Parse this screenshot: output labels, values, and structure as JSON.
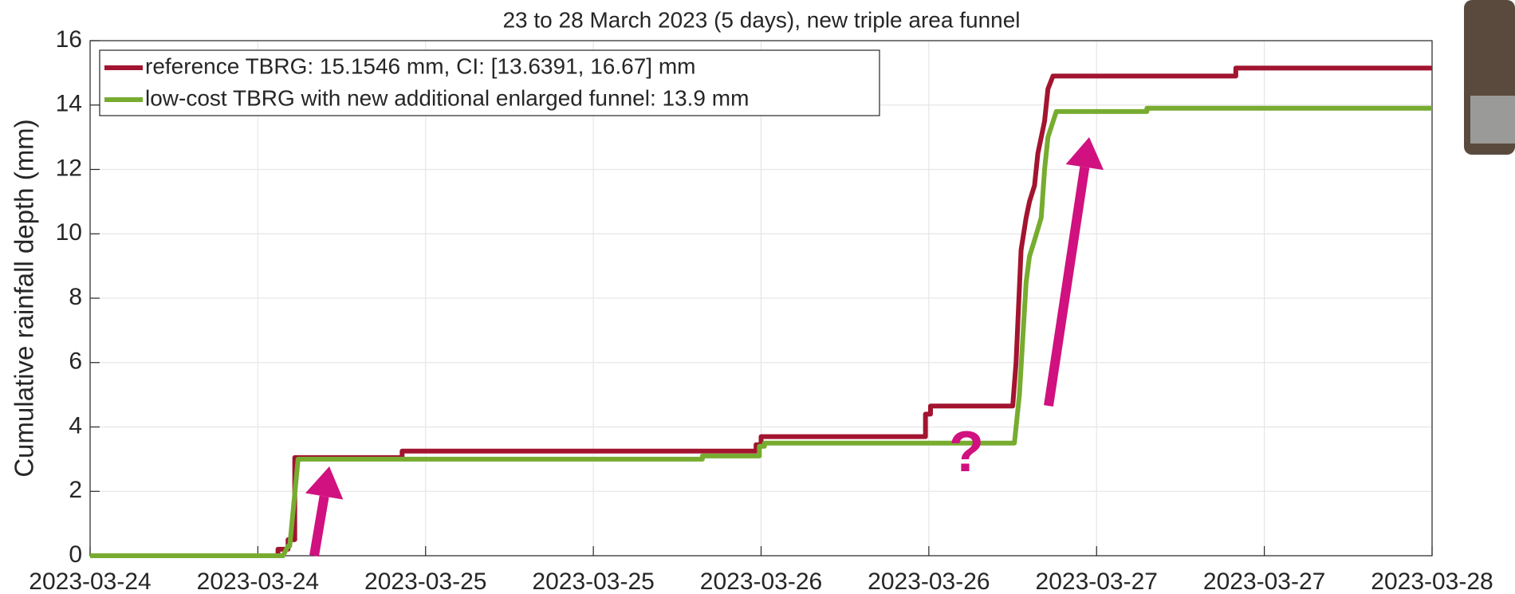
{
  "chart_data": {
    "type": "line",
    "title": "23 to 28 March 2023 (5 days), new triple area funnel",
    "y_label": "Cumulative rainfall depth (mm)",
    "annotation": "?",
    "xlim": [
      0,
      8
    ],
    "xticks": [
      {
        "value": 0,
        "label": "2023-03-24"
      },
      {
        "value": 1,
        "label": "2023-03-24"
      },
      {
        "value": 2,
        "label": "2023-03-25"
      },
      {
        "value": 3,
        "label": "2023-03-25"
      },
      {
        "value": 4,
        "label": "2023-03-26"
      },
      {
        "value": 5,
        "label": "2023-03-26"
      },
      {
        "value": 6,
        "label": "2023-03-27"
      },
      {
        "value": 7,
        "label": "2023-03-27"
      },
      {
        "value": 8,
        "label": "2023-03-28"
      }
    ],
    "ylim": [
      0,
      16
    ],
    "yticks": [
      0,
      2,
      4,
      6,
      8,
      10,
      12,
      14,
      16
    ],
    "grid": true,
    "legend": "upper left",
    "series": [
      {
        "name": "reference TBRG: 15.1546 mm, CI: [13.6391, 16.67] mm",
        "color": "#a2142f",
        "x": [
          0,
          1.12,
          1.12,
          1.18,
          1.18,
          1.22,
          1.22,
          1.86,
          1.86,
          3.97,
          3.97,
          4.0,
          4.0,
          4.98,
          4.98,
          5.01,
          5.01,
          5.5,
          5.52,
          5.55,
          5.58,
          5.6,
          5.63,
          5.65,
          5.69,
          5.71,
          5.74,
          6.83,
          6.83,
          8
        ],
        "values": [
          0,
          0,
          0.2,
          0.2,
          0.5,
          0.5,
          3.05,
          3.05,
          3.25,
          3.25,
          3.45,
          3.45,
          3.7,
          3.7,
          4.4,
          4.4,
          4.65,
          4.65,
          6,
          9.5,
          10.5,
          11,
          11.5,
          12.5,
          13.5,
          14.5,
          14.9,
          14.9,
          15.15,
          15.15
        ]
      },
      {
        "name": "low-cost TBRG with new additional enlarged funnel: 13.9 mm",
        "color": "#77ac30",
        "x": [
          0,
          1.15,
          1.18,
          1.19,
          1.24,
          3.65,
          3.65,
          3.99,
          3.99,
          4.02,
          4.02,
          5.51,
          5.54,
          5.58,
          5.6,
          5.63,
          5.67,
          5.69,
          5.71,
          5.76,
          6.3,
          6.3,
          8
        ],
        "values": [
          0,
          0,
          0.3,
          0.3,
          3.0,
          3.0,
          3.1,
          3.1,
          3.4,
          3.4,
          3.5,
          3.5,
          5,
          8.5,
          9.3,
          9.8,
          10.5,
          12,
          13,
          13.8,
          13.8,
          13.9,
          13.9
        ]
      }
    ]
  }
}
